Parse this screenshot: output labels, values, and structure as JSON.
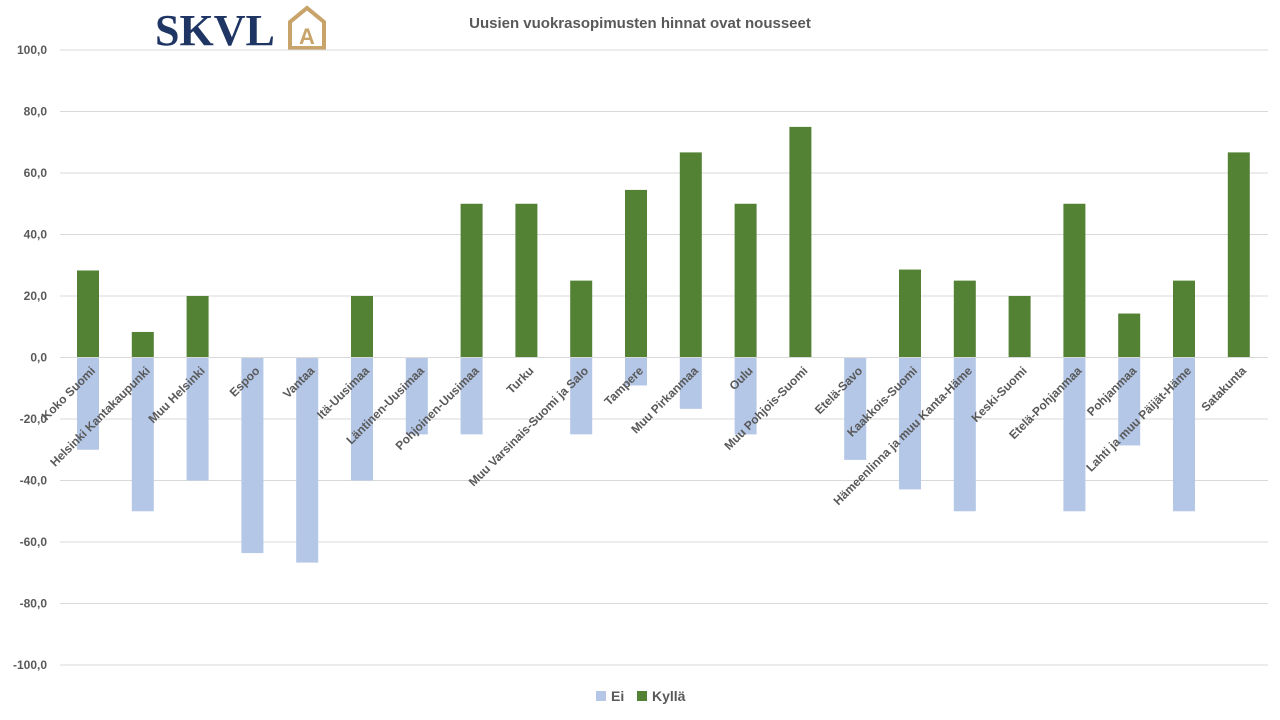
{
  "logo": {
    "text": "SKVL",
    "mark": "A",
    "text_color": "#1f3564",
    "mark_color": "#c8a46b"
  },
  "chart_data": {
    "type": "bar",
    "title": "Uusien vuokrasopimusten hinnat ovat nousseet",
    "xlabel": "",
    "ylabel": "",
    "ylim": [
      -100,
      100
    ],
    "yticks": [
      "100,0",
      "80,0",
      "60,0",
      "40,0",
      "20,0",
      "0,0",
      "-20,0",
      "-40,0",
      "-60,0",
      "-80,0",
      "-100,0"
    ],
    "ytick_values": [
      100,
      80,
      60,
      40,
      20,
      0,
      -20,
      -40,
      -60,
      -80,
      -100
    ],
    "grid": true,
    "legend_position": "bottom",
    "categories": [
      "Koko Suomi",
      "Helsinki Kantakaupunki",
      "Muu Helsinki",
      "Espoo",
      "Vantaa",
      "Itä-Uusimaa",
      "Läntinen-Uusimaa",
      "Pohjoinen-Uusimaa",
      "Turku",
      "Muu Varsinais-Suomi ja Salo",
      "Tampere",
      "Muu Pirkanmaa",
      "Oulu",
      "Muu Pohjois-Suomi",
      "Etelä-Savo",
      "Kaakkois-Suomi",
      "Hämeenlinna ja muu Kanta-Häme",
      "Keski-Suomi",
      "Etelä-Pohjanmaa",
      "Pohjanmaa",
      "Lahti ja muu Päijät-Häme",
      "Satakunta"
    ],
    "series": [
      {
        "name": "Ei",
        "color": "#b4c7e7",
        "values": [
          -30,
          -50,
          -40,
          -63.6,
          -66.7,
          -40,
          -25,
          -25,
          0,
          -25,
          -9.1,
          -16.7,
          -25,
          0,
          -33.3,
          -42.9,
          -50,
          0,
          -50,
          -28.6,
          -50,
          0
        ]
      },
      {
        "name": "Kyllä",
        "color": "#548235",
        "values": [
          28.3,
          8.3,
          20,
          0,
          0,
          20,
          0,
          50,
          50,
          25,
          54.5,
          66.7,
          50,
          75,
          0,
          28.6,
          25,
          20,
          50,
          14.3,
          25,
          66.7
        ]
      }
    ]
  }
}
